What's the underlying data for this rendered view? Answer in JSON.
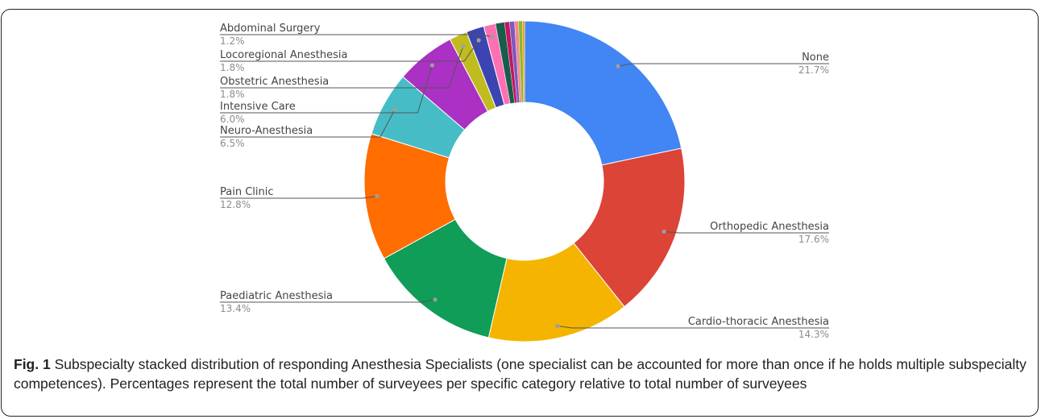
{
  "chart_data": {
    "type": "pie",
    "donut": true,
    "title": "",
    "slices": [
      {
        "label": "None",
        "value": 21.7,
        "display": "21.7%",
        "color": "#4285f4",
        "labeled": true,
        "side": "right"
      },
      {
        "label": "Orthopedic Anesthesia",
        "value": 17.6,
        "display": "17.6%",
        "color": "#db4437",
        "labeled": true,
        "side": "right"
      },
      {
        "label": "Cardio-thoracic Anesthesia",
        "value": 14.3,
        "display": "14.3%",
        "color": "#f4b400",
        "labeled": true,
        "side": "right"
      },
      {
        "label": "Paediatric Anesthesia",
        "value": 13.4,
        "display": "13.4%",
        "color": "#0f9d58",
        "labeled": true,
        "side": "left"
      },
      {
        "label": "Pain Clinic",
        "value": 12.8,
        "display": "12.8%",
        "color": "#ff6d01",
        "labeled": true,
        "side": "left"
      },
      {
        "label": "Neuro-Anesthesia",
        "value": 6.5,
        "display": "6.5%",
        "color": "#46bdc6",
        "labeled": true,
        "side": "left"
      },
      {
        "label": "Intensive Care",
        "value": 6.0,
        "display": "6.0%",
        "color": "#ab30c4",
        "labeled": true,
        "side": "left"
      },
      {
        "label": "Obstetric Anesthesia",
        "value": 1.8,
        "display": "1.8%",
        "color": "#c0bc1f",
        "labeled": true,
        "side": "left"
      },
      {
        "label": "Locoregional Anesthesia",
        "value": 1.8,
        "display": "1.8%",
        "color": "#3b44b0",
        "labeled": true,
        "side": "left"
      },
      {
        "label": "Abdominal Surgery",
        "value": 1.2,
        "display": "1.2%",
        "color": "#ff6fb1",
        "labeled": true,
        "side": "left"
      },
      {
        "label": "",
        "value": 0.9,
        "display": "",
        "color": "#185d4b",
        "labeled": false
      },
      {
        "label": "",
        "value": 0.5,
        "display": "",
        "color": "#c2185b",
        "labeled": false
      },
      {
        "label": "",
        "value": 0.5,
        "display": "",
        "color": "#7e57c2",
        "labeled": false
      },
      {
        "label": "",
        "value": 0.4,
        "display": "",
        "color": "#f28b82",
        "labeled": false
      },
      {
        "label": "",
        "value": 0.4,
        "display": "",
        "color": "#8ab734",
        "labeled": false
      },
      {
        "label": "",
        "value": 0.2,
        "display": "",
        "color": "#ff9800",
        "labeled": false
      }
    ],
    "leader_color": "#555555",
    "dot_color": "#9e9e9e"
  },
  "caption": {
    "fig_label": "Fig. 1",
    "text": " Subspecialty stacked distribution of responding Anesthesia Specialists (one specialist can be accounted for more than once if he holds multiple subspecialty competences). Percentages represent the total number of surveyees per specific category relative to total number of surveyees"
  }
}
